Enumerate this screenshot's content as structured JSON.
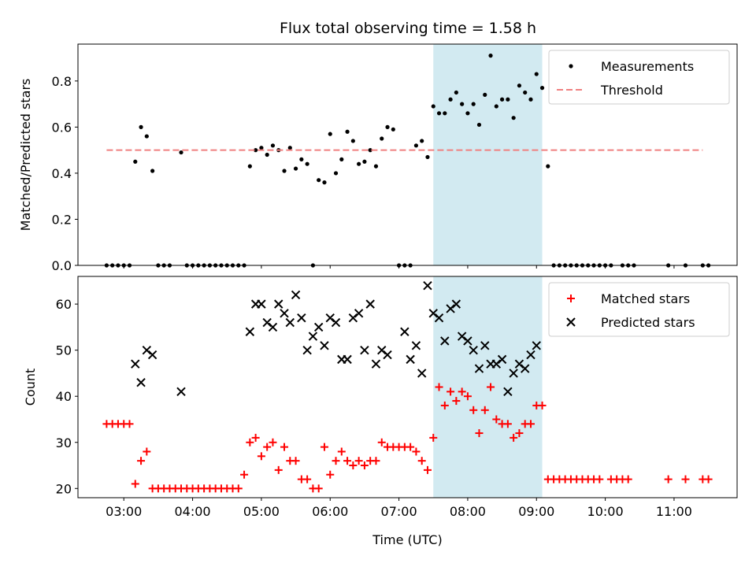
{
  "title": "Flux total observing time = 1.58 h",
  "highlight_color": "#add8e6",
  "chart_data": [
    {
      "type": "scatter",
      "ylabel": "Matched/Predicted stars",
      "xlabel": "",
      "xlim": [
        "02:20",
        "11:55"
      ],
      "ylim": [
        0,
        0.96
      ],
      "yticks": [
        "0.0",
        "0.2",
        "0.4",
        "0.6",
        "0.8"
      ],
      "highlight_span": [
        "07:30",
        "09:05"
      ],
      "legend_position": "top-right",
      "series": [
        {
          "name": "Measurements",
          "marker": "dot",
          "color": "#000000",
          "points": [
            [
              "02:45",
              0
            ],
            [
              "02:50",
              0
            ],
            [
              "02:55",
              0
            ],
            [
              "03:00",
              0
            ],
            [
              "03:05",
              0
            ],
            [
              "03:10",
              0.45
            ],
            [
              "03:15",
              0.6
            ],
            [
              "03:20",
              0.56
            ],
            [
              "03:25",
              0.41
            ],
            [
              "03:30",
              0
            ],
            [
              "03:35",
              0
            ],
            [
              "03:40",
              0
            ],
            [
              "03:50",
              0.49
            ],
            [
              "03:55",
              0
            ],
            [
              "04:00",
              0
            ],
            [
              "04:05",
              0
            ],
            [
              "04:10",
              0
            ],
            [
              "04:15",
              0
            ],
            [
              "04:20",
              0
            ],
            [
              "04:25",
              0
            ],
            [
              "04:30",
              0
            ],
            [
              "04:35",
              0
            ],
            [
              "04:40",
              0
            ],
            [
              "04:45",
              0
            ],
            [
              "04:50",
              0.43
            ],
            [
              "04:55",
              0.5
            ],
            [
              "05:00",
              0.51
            ],
            [
              "05:05",
              0.48
            ],
            [
              "05:10",
              0.52
            ],
            [
              "05:15",
              0.5
            ],
            [
              "05:20",
              0.41
            ],
            [
              "05:25",
              0.51
            ],
            [
              "05:30",
              0.42
            ],
            [
              "05:35",
              0.46
            ],
            [
              "05:40",
              0.44
            ],
            [
              "05:45",
              0
            ],
            [
              "05:50",
              0.37
            ],
            [
              "05:55",
              0.36
            ],
            [
              "06:00",
              0.57
            ],
            [
              "06:05",
              0.4
            ],
            [
              "06:10",
              0.46
            ],
            [
              "06:15",
              0.58
            ],
            [
              "06:20",
              0.54
            ],
            [
              "06:25",
              0.44
            ],
            [
              "06:30",
              0.45
            ],
            [
              "06:35",
              0.5
            ],
            [
              "06:40",
              0.43
            ],
            [
              "06:45",
              0.55
            ],
            [
              "06:50",
              0.6
            ],
            [
              "06:55",
              0.59
            ],
            [
              "07:00",
              0
            ],
            [
              "07:05",
              0
            ],
            [
              "07:10",
              0
            ],
            [
              "07:15",
              0.52
            ],
            [
              "07:20",
              0.54
            ],
            [
              "07:25",
              0.47
            ],
            [
              "07:30",
              0.69
            ],
            [
              "07:35",
              0.66
            ],
            [
              "07:40",
              0.66
            ],
            [
              "07:45",
              0.72
            ],
            [
              "07:50",
              0.75
            ],
            [
              "07:55",
              0.7
            ],
            [
              "08:00",
              0.66
            ],
            [
              "08:05",
              0.7
            ],
            [
              "08:10",
              0.61
            ],
            [
              "08:15",
              0.74
            ],
            [
              "08:20",
              0.91
            ],
            [
              "08:25",
              0.69
            ],
            [
              "08:30",
              0.72
            ],
            [
              "08:35",
              0.72
            ],
            [
              "08:40",
              0.64
            ],
            [
              "08:45",
              0.78
            ],
            [
              "08:50",
              0.75
            ],
            [
              "08:55",
              0.72
            ],
            [
              "09:00",
              0.83
            ],
            [
              "09:05",
              0.77
            ],
            [
              "09:10",
              0.43
            ],
            [
              "09:15",
              0
            ],
            [
              "09:20",
              0
            ],
            [
              "09:25",
              0
            ],
            [
              "09:30",
              0
            ],
            [
              "09:35",
              0
            ],
            [
              "09:40",
              0
            ],
            [
              "09:45",
              0
            ],
            [
              "09:50",
              0
            ],
            [
              "09:55",
              0
            ],
            [
              "10:00",
              0
            ],
            [
              "10:05",
              0
            ],
            [
              "10:15",
              0
            ],
            [
              "10:20",
              0
            ],
            [
              "10:25",
              0
            ],
            [
              "10:55",
              0
            ],
            [
              "11:10",
              0
            ],
            [
              "11:25",
              0
            ],
            [
              "11:30",
              0
            ]
          ]
        },
        {
          "name": "Threshold",
          "marker": "dashed-line",
          "color": "#f08080",
          "points": [
            [
              "02:45",
              0.5
            ],
            [
              "11:25",
              0.5
            ]
          ]
        }
      ]
    },
    {
      "type": "scatter",
      "ylabel": "Count",
      "xlabel": "Time (UTC)",
      "xlim": [
        "02:20",
        "11:55"
      ],
      "ylim": [
        18,
        66
      ],
      "yticks": [
        "20",
        "30",
        "40",
        "50",
        "60"
      ],
      "xticks": [
        "03:00",
        "04:00",
        "05:00",
        "06:00",
        "07:00",
        "08:00",
        "09:00",
        "10:00",
        "11:00"
      ],
      "highlight_span": [
        "07:30",
        "09:05"
      ],
      "legend_position": "top-right",
      "series": [
        {
          "name": "Matched stars",
          "marker": "plus",
          "color": "#ff0000",
          "points": [
            [
              "02:45",
              34
            ],
            [
              "02:50",
              34
            ],
            [
              "02:55",
              34
            ],
            [
              "03:00",
              34
            ],
            [
              "03:05",
              34
            ],
            [
              "03:10",
              21
            ],
            [
              "03:15",
              26
            ],
            [
              "03:20",
              28
            ],
            [
              "03:25",
              20
            ],
            [
              "03:30",
              20
            ],
            [
              "03:35",
              20
            ],
            [
              "03:40",
              20
            ],
            [
              "03:45",
              20
            ],
            [
              "03:50",
              20
            ],
            [
              "03:55",
              20
            ],
            [
              "04:00",
              20
            ],
            [
              "04:05",
              20
            ],
            [
              "04:10",
              20
            ],
            [
              "04:15",
              20
            ],
            [
              "04:20",
              20
            ],
            [
              "04:25",
              20
            ],
            [
              "04:30",
              20
            ],
            [
              "04:35",
              20
            ],
            [
              "04:40",
              20
            ],
            [
              "04:45",
              23
            ],
            [
              "04:50",
              30
            ],
            [
              "04:55",
              31
            ],
            [
              "05:00",
              27
            ],
            [
              "05:05",
              29
            ],
            [
              "05:10",
              30
            ],
            [
              "05:15",
              24
            ],
            [
              "05:20",
              29
            ],
            [
              "05:25",
              26
            ],
            [
              "05:30",
              26
            ],
            [
              "05:35",
              22
            ],
            [
              "05:40",
              22
            ],
            [
              "05:45",
              20
            ],
            [
              "05:50",
              20
            ],
            [
              "05:55",
              29
            ],
            [
              "06:00",
              23
            ],
            [
              "06:05",
              26
            ],
            [
              "06:10",
              28
            ],
            [
              "06:15",
              26
            ],
            [
              "06:20",
              25
            ],
            [
              "06:25",
              26
            ],
            [
              "06:30",
              25
            ],
            [
              "06:35",
              26
            ],
            [
              "06:40",
              26
            ],
            [
              "06:45",
              30
            ],
            [
              "06:50",
              29
            ],
            [
              "06:55",
              29
            ],
            [
              "07:00",
              29
            ],
            [
              "07:05",
              29
            ],
            [
              "07:10",
              29
            ],
            [
              "07:15",
              28
            ],
            [
              "07:20",
              26
            ],
            [
              "07:25",
              24
            ],
            [
              "07:30",
              31
            ],
            [
              "07:35",
              42
            ],
            [
              "07:40",
              38
            ],
            [
              "07:45",
              41
            ],
            [
              "07:50",
              39
            ],
            [
              "07:55",
              41
            ],
            [
              "08:00",
              40
            ],
            [
              "08:05",
              37
            ],
            [
              "08:10",
              32
            ],
            [
              "08:15",
              37
            ],
            [
              "08:20",
              42
            ],
            [
              "08:25",
              35
            ],
            [
              "08:30",
              34
            ],
            [
              "08:35",
              34
            ],
            [
              "08:40",
              31
            ],
            [
              "08:45",
              32
            ],
            [
              "08:50",
              34
            ],
            [
              "08:55",
              34
            ],
            [
              "09:00",
              38
            ],
            [
              "09:05",
              38
            ],
            [
              "09:10",
              22
            ],
            [
              "09:15",
              22
            ],
            [
              "09:20",
              22
            ],
            [
              "09:25",
              22
            ],
            [
              "09:30",
              22
            ],
            [
              "09:35",
              22
            ],
            [
              "09:40",
              22
            ],
            [
              "09:45",
              22
            ],
            [
              "09:50",
              22
            ],
            [
              "09:55",
              22
            ],
            [
              "10:05",
              22
            ],
            [
              "10:10",
              22
            ],
            [
              "10:15",
              22
            ],
            [
              "10:20",
              22
            ],
            [
              "10:55",
              22
            ],
            [
              "11:10",
              22
            ],
            [
              "11:25",
              22
            ],
            [
              "11:30",
              22
            ]
          ]
        },
        {
          "name": "Predicted stars",
          "marker": "x",
          "color": "#000000",
          "points": [
            [
              "03:10",
              47
            ],
            [
              "03:15",
              43
            ],
            [
              "03:20",
              50
            ],
            [
              "03:25",
              49
            ],
            [
              "03:50",
              41
            ],
            [
              "04:50",
              54
            ],
            [
              "04:55",
              60
            ],
            [
              "05:00",
              60
            ],
            [
              "05:05",
              56
            ],
            [
              "05:10",
              55
            ],
            [
              "05:15",
              60
            ],
            [
              "05:20",
              58
            ],
            [
              "05:25",
              56
            ],
            [
              "05:30",
              62
            ],
            [
              "05:35",
              57
            ],
            [
              "05:40",
              50
            ],
            [
              "05:45",
              53
            ],
            [
              "05:50",
              55
            ],
            [
              "05:55",
              51
            ],
            [
              "06:00",
              57
            ],
            [
              "06:05",
              56
            ],
            [
              "06:10",
              48
            ],
            [
              "06:15",
              48
            ],
            [
              "06:20",
              57
            ],
            [
              "06:25",
              58
            ],
            [
              "06:30",
              50
            ],
            [
              "06:35",
              60
            ],
            [
              "06:40",
              47
            ],
            [
              "06:45",
              50
            ],
            [
              "06:50",
              49
            ],
            [
              "07:05",
              54
            ],
            [
              "07:10",
              48
            ],
            [
              "07:15",
              51
            ],
            [
              "07:20",
              45
            ],
            [
              "07:25",
              64
            ],
            [
              "07:30",
              58
            ],
            [
              "07:35",
              57
            ],
            [
              "07:40",
              52
            ],
            [
              "07:45",
              59
            ],
            [
              "07:50",
              60
            ],
            [
              "07:55",
              53
            ],
            [
              "08:00",
              52
            ],
            [
              "08:05",
              50
            ],
            [
              "08:10",
              46
            ],
            [
              "08:15",
              51
            ],
            [
              "08:20",
              47
            ],
            [
              "08:25",
              47
            ],
            [
              "08:30",
              48
            ],
            [
              "08:35",
              41
            ],
            [
              "08:40",
              45
            ],
            [
              "08:45",
              47
            ],
            [
              "08:50",
              46
            ],
            [
              "08:55",
              49
            ],
            [
              "09:00",
              51
            ]
          ]
        }
      ]
    }
  ]
}
